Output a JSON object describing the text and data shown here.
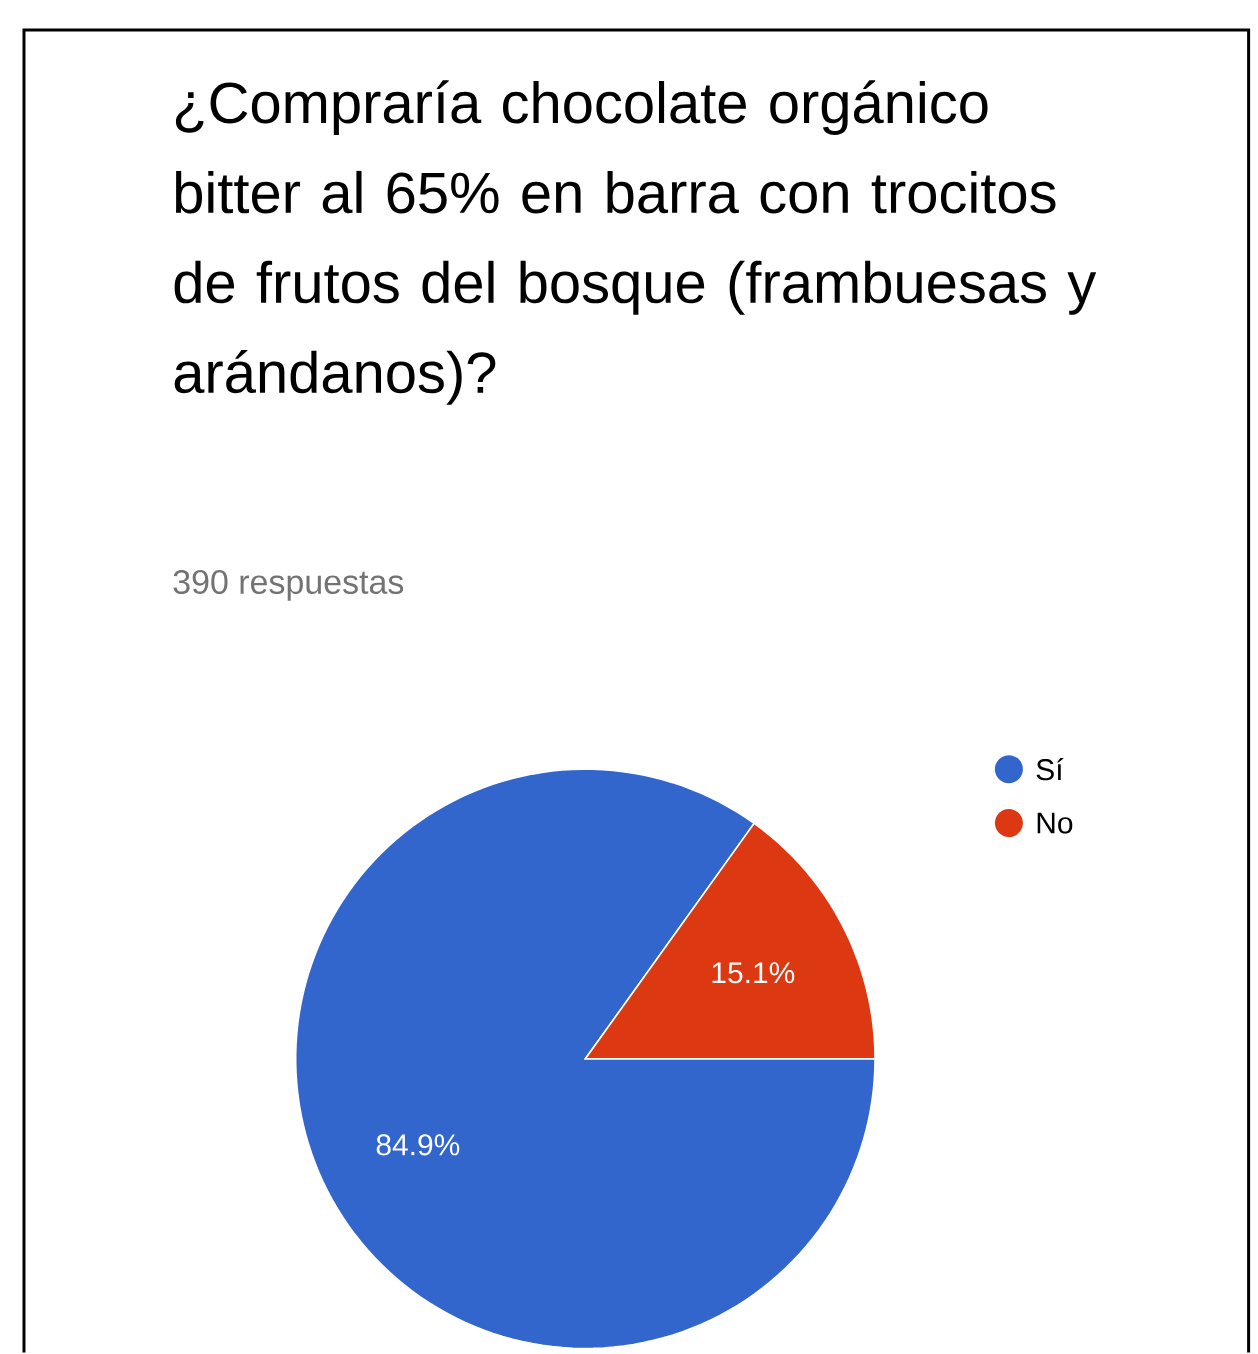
{
  "chart_data": {
    "type": "pie",
    "title": "¿Compraría chocolate orgánico bitter al 65% en barra con trocitos de frutos del bosque (frambuesas y arándanos)?",
    "subtitle": "390 respuestas",
    "categories": [
      "Sí",
      "No"
    ],
    "values": [
      84.9,
      15.1
    ],
    "value_labels": [
      "84.9%",
      "15.1%"
    ],
    "colors": [
      "#3366cc",
      "#dc3912"
    ],
    "legend": "top right"
  }
}
